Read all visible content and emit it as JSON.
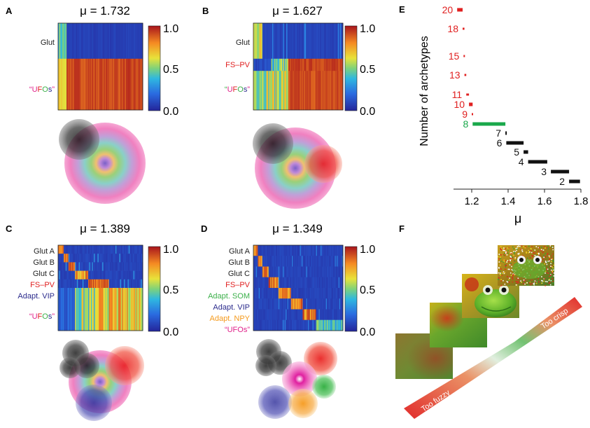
{
  "panels": {
    "A": {
      "letter": "A",
      "mu": "μ = 1.732",
      "rows": [
        "Glut",
        "“UFOs”"
      ]
    },
    "B": {
      "letter": "B",
      "mu": "μ = 1.627",
      "rows": [
        "Glut",
        "FS–PV",
        "“UFOs”"
      ]
    },
    "C": {
      "letter": "C",
      "mu": "μ = 1.389",
      "rows": [
        "Glut A",
        "Glut B",
        "Glut C",
        "FS–PV",
        "Adapt. VIP",
        "“UFOs”"
      ]
    },
    "D": {
      "letter": "D",
      "mu": "μ = 1.349",
      "rows": [
        "Glut A",
        "Glut B",
        "Glut C",
        "FS–PV",
        "Adapt. SOM",
        "Adapt. VIP",
        "Adapt. NPY",
        "“UFOs”"
      ]
    },
    "E": {
      "letter": "E"
    },
    "F": {
      "letter": "F",
      "too_fuzzy": "Too fuzzy",
      "too_crisp": "Too crisp"
    }
  },
  "colorbar": {
    "ticks": [
      "1.0",
      "0.5",
      "0.0"
    ]
  },
  "ufo_letters": [
    "“",
    "U",
    "F",
    "O",
    "s",
    "”"
  ],
  "colors": {
    "glut": "#222222",
    "fspv": "#e02020",
    "vip": "#2b2b8c",
    "som": "#3cb04a",
    "npy": "#f59a1c",
    "ufo": "#e0208a",
    "highlight": "#1aa84b"
  },
  "chart_data": {
    "type": "interval",
    "title": "",
    "xlabel": "μ",
    "ylabel": "Number of archetypes",
    "xlim": [
      1.1,
      1.8
    ],
    "xticks": [
      "1.2",
      "1.4",
      "1.6",
      "1.8"
    ],
    "intervals": [
      {
        "k": "20",
        "start": 1.12,
        "end": 1.15,
        "color": "red"
      },
      {
        "k": "18",
        "start": 1.15,
        "end": 1.16,
        "color": "red"
      },
      {
        "k": "15",
        "start": 1.155,
        "end": 1.16,
        "color": "red"
      },
      {
        "k": "13",
        "start": 1.16,
        "end": 1.17,
        "color": "red"
      },
      {
        "k": "11",
        "start": 1.17,
        "end": 1.185,
        "color": "red"
      },
      {
        "k": "10",
        "start": 1.185,
        "end": 1.205,
        "color": "red"
      },
      {
        "k": "9",
        "start": 1.2,
        "end": 1.205,
        "color": "red"
      },
      {
        "k": "8",
        "start": 1.205,
        "end": 1.385,
        "color": "green"
      },
      {
        "k": "7",
        "start": 1.385,
        "end": 1.39,
        "color": "black"
      },
      {
        "k": "6",
        "start": 1.39,
        "end": 1.485,
        "color": "black"
      },
      {
        "k": "5",
        "start": 1.485,
        "end": 1.51,
        "color": "black"
      },
      {
        "k": "4",
        "start": 1.51,
        "end": 1.615,
        "color": "black"
      },
      {
        "k": "3",
        "start": 1.635,
        "end": 1.735,
        "color": "black"
      },
      {
        "k": "2",
        "start": 1.735,
        "end": 1.795,
        "color": "black"
      }
    ]
  }
}
